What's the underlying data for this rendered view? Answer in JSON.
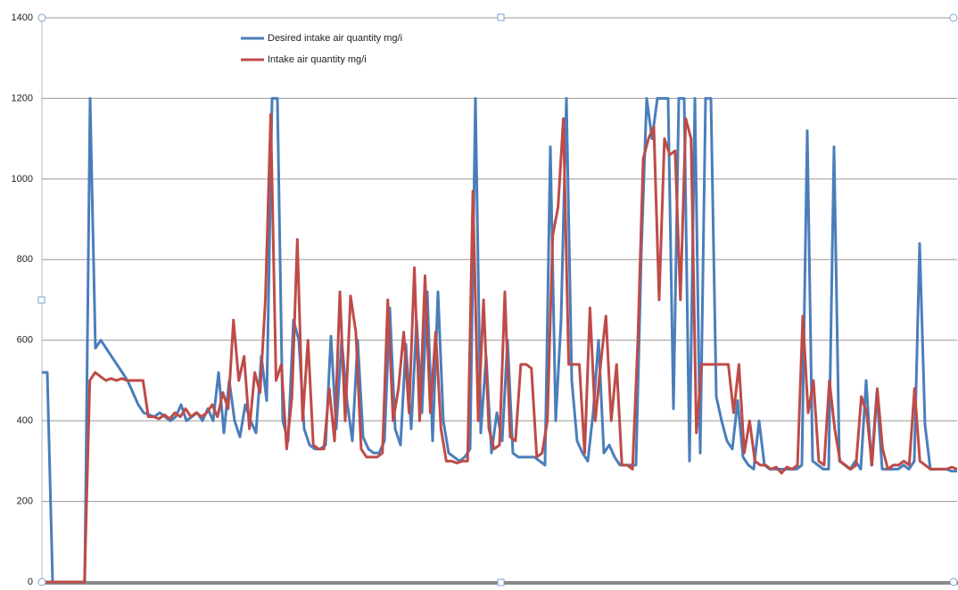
{
  "chart_data": {
    "type": "line",
    "series": [
      {
        "name": "Desired intake air quantity  mg/i",
        "color": "#4a7ebb",
        "values": [
          520,
          520,
          0,
          0,
          0,
          0,
          0,
          0,
          0,
          1200,
          580,
          600,
          580,
          560,
          540,
          520,
          500,
          470,
          440,
          420,
          415,
          410,
          420,
          410,
          400,
          410,
          440,
          400,
          410,
          420,
          400,
          430,
          400,
          520,
          370,
          500,
          400,
          360,
          440,
          400,
          370,
          560,
          450,
          1200,
          1200,
          400,
          350,
          650,
          600,
          380,
          340,
          330,
          330,
          340,
          610,
          380,
          600,
          450,
          350,
          600,
          360,
          330,
          320,
          320,
          350,
          680,
          380,
          340,
          590,
          380,
          650,
          420,
          720,
          350,
          720,
          400,
          320,
          310,
          300,
          310,
          330,
          1200,
          370,
          560,
          320,
          420,
          350,
          600,
          320,
          310,
          310,
          310,
          310,
          300,
          290,
          1080,
          400,
          650,
          1200,
          500,
          350,
          320,
          300,
          420,
          600,
          320,
          340,
          310,
          290,
          290,
          290,
          290,
          820,
          1200,
          1100,
          1200,
          1200,
          1200,
          430,
          1200,
          1200,
          300,
          1200,
          320,
          1200,
          1200,
          460,
          400,
          350,
          330,
          450,
          310,
          290,
          280,
          400,
          290,
          280,
          280,
          280,
          280,
          280,
          280,
          290,
          1120,
          300,
          290,
          280,
          280,
          1080,
          300,
          290,
          280,
          300,
          280,
          500,
          290,
          470,
          280,
          280,
          280,
          280,
          290,
          280,
          300,
          840,
          390,
          280,
          280,
          280,
          280,
          275,
          275
        ]
      },
      {
        "name": "Intake air quantity mg/i",
        "color": "#be4b48",
        "values": [
          0,
          0,
          0,
          0,
          0,
          0,
          0,
          0,
          0,
          500,
          520,
          510,
          500,
          505,
          500,
          505,
          500,
          500,
          500,
          500,
          410,
          410,
          405,
          415,
          405,
          420,
          410,
          430,
          410,
          420,
          410,
          420,
          440,
          410,
          470,
          430,
          650,
          500,
          560,
          380,
          520,
          470,
          700,
          1160,
          500,
          540,
          330,
          460,
          850,
          400,
          600,
          340,
          330,
          330,
          480,
          350,
          720,
          400,
          710,
          620,
          330,
          310,
          310,
          310,
          320,
          700,
          400,
          480,
          620,
          420,
          780,
          400,
          760,
          420,
          620,
          380,
          300,
          300,
          295,
          300,
          300,
          970,
          400,
          700,
          380,
          330,
          340,
          720,
          360,
          350,
          540,
          540,
          530,
          310,
          320,
          400,
          860,
          930,
          1150,
          540,
          540,
          540,
          320,
          680,
          400,
          540,
          660,
          400,
          540,
          290,
          290,
          280,
          600,
          1050,
          1100,
          1130,
          700,
          1100,
          1060,
          1070,
          700,
          1150,
          1100,
          370,
          540,
          540,
          540,
          540,
          540,
          540,
          420,
          540,
          320,
          400,
          300,
          290,
          290,
          280,
          285,
          270,
          285,
          280,
          290,
          660,
          420,
          500,
          300,
          290,
          500,
          380,
          300,
          290,
          280,
          290,
          460,
          420,
          290,
          480,
          330,
          280,
          290,
          290,
          300,
          290,
          480,
          300,
          290,
          280,
          280,
          280,
          280,
          285,
          280
        ]
      }
    ],
    "ylim": [
      0,
      1400
    ],
    "yticks": [
      0,
      200,
      400,
      600,
      800,
      1000,
      1200,
      1400
    ],
    "grid": true
  }
}
